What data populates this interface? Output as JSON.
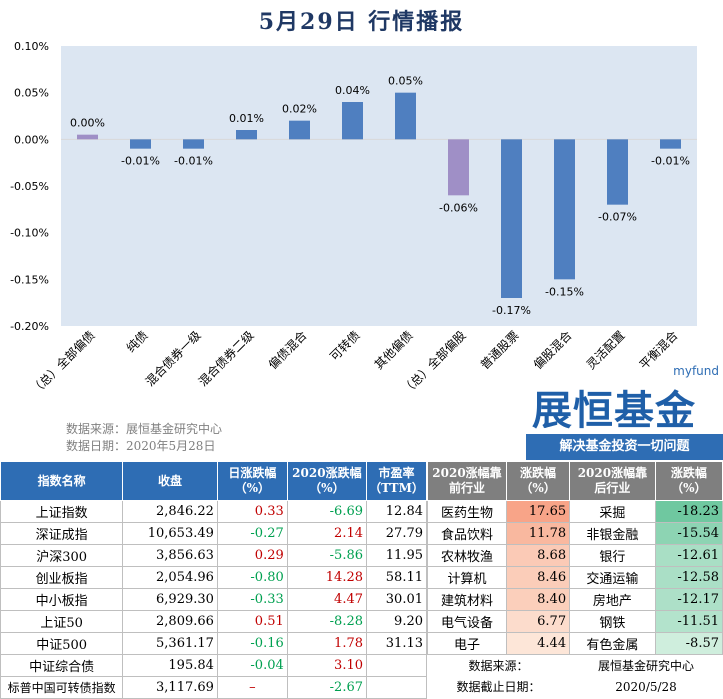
{
  "title": "5月29日  行情播报",
  "chart_data": {
    "type": "bar",
    "categories": [
      "（总）全部偏债",
      "纯债",
      "混合债券一级",
      "混合债券二级",
      "偏债混合",
      "可转债",
      "其他偏债",
      "（总）全部偏股",
      "普通股票",
      "偏股混合",
      "灵活配置",
      "平衡混合"
    ],
    "values": [
      0.005,
      -0.01,
      -0.01,
      0.01,
      0.02,
      0.04,
      0.05,
      -0.06,
      -0.17,
      -0.15,
      -0.07,
      -0.01
    ],
    "data_labels": [
      "0.00%",
      "-0.01%",
      "-0.01%",
      "0.01%",
      "0.02%",
      "0.04%",
      "0.05%",
      "-0.06%",
      "-0.17%",
      "-0.15%",
      "-0.07%",
      "-0.01%"
    ],
    "bar_colors": [
      "#9f8fc6",
      "#4f7fc0",
      "#4f7fc0",
      "#4f7fc0",
      "#4f7fc0",
      "#4f7fc0",
      "#4f7fc0",
      "#9f8fc6",
      "#4f7fc0",
      "#4f7fc0",
      "#4f7fc0",
      "#4f7fc0"
    ],
    "yticks": [
      "0.10%",
      "0.05%",
      "0.00%",
      "-0.05%",
      "-0.10%",
      "-0.15%",
      "-0.20%"
    ],
    "ylim": [
      -0.2,
      0.1
    ],
    "plot_bg": "#dce6f2",
    "grid": false
  },
  "source": {
    "line1": "数据来源：展恒基金研究中心",
    "line2": "数据日期：2020年5月28日"
  },
  "logo": {
    "small": "myfund",
    "brand": "展恒基金",
    "slogan": "解决基金投资一切问题"
  },
  "index_table": {
    "headers": [
      "指数名称",
      "收盘",
      "日涨跌幅（%）",
      "2020涨跌幅（%）",
      "市盈率（TTM）"
    ],
    "rows": [
      {
        "name": "上证指数",
        "close": "2,846.22",
        "day": "0.33",
        "ytd": "-6.69",
        "pe": "12.84"
      },
      {
        "name": "深证成指",
        "close": "10,653.49",
        "day": "-0.27",
        "ytd": "2.14",
        "pe": "27.79"
      },
      {
        "name": "沪深300",
        "close": "3,856.63",
        "day": "0.29",
        "ytd": "-5.86",
        "pe": "11.95"
      },
      {
        "name": "创业板指",
        "close": "2,054.96",
        "day": "-0.80",
        "ytd": "14.28",
        "pe": "58.11"
      },
      {
        "name": "中小板指",
        "close": "6,929.30",
        "day": "-0.33",
        "ytd": "4.47",
        "pe": "30.01"
      },
      {
        "name": "上证50",
        "close": "2,809.66",
        "day": "0.51",
        "ytd": "-8.28",
        "pe": "9.20"
      },
      {
        "name": "中证500",
        "close": "5,361.17",
        "day": "-0.16",
        "ytd": "1.78",
        "pe": "31.13"
      },
      {
        "name": "中证综合债",
        "close": "195.84",
        "day": "-0.04",
        "ytd": "3.10",
        "pe": ""
      },
      {
        "name": "标普中国可转债指数",
        "close": "3,117.69",
        "day": "–",
        "ytd": "-2.67",
        "pe": ""
      }
    ]
  },
  "industry_table": {
    "headers": [
      "2020涨幅靠前行业",
      "涨跌幅（%）",
      "2020涨幅靠后行业",
      "涨跌幅（%）"
    ],
    "rows": [
      {
        "top": "医药生物",
        "top_chg": "17.65",
        "bottom": "采掘",
        "bottom_chg": "-18.23"
      },
      {
        "top": "食品饮料",
        "top_chg": "11.78",
        "bottom": "非银金融",
        "bottom_chg": "-15.54"
      },
      {
        "top": "农林牧渔",
        "top_chg": "8.68",
        "bottom": "银行",
        "bottom_chg": "-12.61"
      },
      {
        "top": "计算机",
        "top_chg": "8.46",
        "bottom": "交通运输",
        "bottom_chg": "-12.58"
      },
      {
        "top": "建筑材料",
        "top_chg": "8.40",
        "bottom": "房地产",
        "bottom_chg": "-12.17"
      },
      {
        "top": "电气设备",
        "top_chg": "6.77",
        "bottom": "钢铁",
        "bottom_chg": "-11.51"
      },
      {
        "top": "电子",
        "top_chg": "4.44",
        "bottom": "有色金属",
        "bottom_chg": "-8.57"
      }
    ],
    "top_colors": [
      "#f8a488",
      "#f9b89f",
      "#fbcab6",
      "#fbcdb9",
      "#fbcfbb",
      "#fcdccc",
      "#fde6d8"
    ],
    "bottom_colors": [
      "#6fc8a0",
      "#8dd4b3",
      "#a9dfc5",
      "#aadfc6",
      "#ade0c8",
      "#b3e3cc",
      "#cfeedd"
    ],
    "footer": [
      {
        "label": "数据来源：",
        "value": "展恒基金研究中心"
      },
      {
        "label": "数据截止日期：",
        "value": "2020/5/28"
      }
    ]
  }
}
